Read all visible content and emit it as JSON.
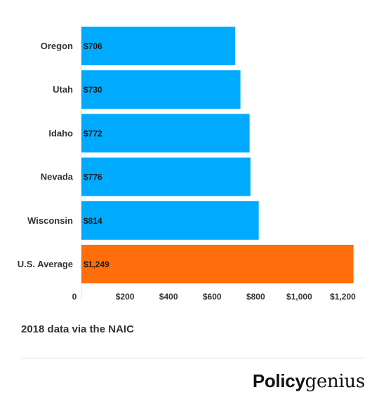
{
  "chart_data": {
    "type": "bar",
    "orientation": "horizontal",
    "categories": [
      "Oregon",
      "Utah",
      "Idaho",
      "Nevada",
      "Wisconsin",
      "U.S. Average"
    ],
    "values": [
      706,
      730,
      772,
      776,
      814,
      1249
    ],
    "value_labels": [
      "$706",
      "$730",
      "$772",
      "$776",
      "$814",
      "$1,249"
    ],
    "bar_colors": [
      "#00aaff",
      "#00aaff",
      "#00aaff",
      "#00aaff",
      "#00aaff",
      "#ff6e0a"
    ],
    "xlim": [
      0,
      1250
    ],
    "x_ticks": [
      0,
      200,
      400,
      600,
      800,
      1000,
      1200
    ],
    "x_tick_labels": [
      "0",
      "$200",
      "$400",
      "$600",
      "$800",
      "$1,000",
      "$1,200"
    ],
    "title": "",
    "xlabel": "",
    "ylabel": "",
    "grid": false,
    "legend": "none"
  },
  "footer": {
    "source": "2018 data via the NAIC",
    "logo_bold": "Policy",
    "logo_serif": "genius"
  }
}
